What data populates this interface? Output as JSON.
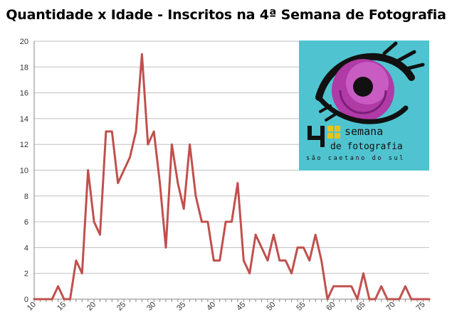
{
  "chart_data": {
    "type": "line",
    "title": "Quantidade x Idade - Inscritos na 4ª Semana de Fotografia",
    "xlabel": "",
    "ylabel": "",
    "xlim": [
      10,
      76
    ],
    "ylim": [
      0,
      20
    ],
    "x_ticks": [
      "10",
      "15",
      "20",
      "25",
      "30",
      "35",
      "40",
      "45",
      "50",
      "55",
      "60",
      "65",
      "70",
      "75"
    ],
    "y_ticks": [
      "0",
      "2",
      "4",
      "6",
      "8",
      "10",
      "12",
      "14",
      "16",
      "18",
      "20"
    ],
    "grid": true,
    "legend": "none",
    "series": [
      {
        "color": "#c0504d",
        "x": [
          10,
          11,
          12,
          13,
          14,
          15,
          16,
          17,
          18,
          19,
          20,
          21,
          22,
          23,
          24,
          25,
          26,
          27,
          28,
          29,
          30,
          31,
          32,
          33,
          34,
          35,
          36,
          37,
          38,
          39,
          40,
          41,
          42,
          43,
          44,
          45,
          46,
          47,
          48,
          49,
          50,
          51,
          52,
          53,
          54,
          55,
          56,
          57,
          58,
          59,
          60,
          61,
          62,
          63,
          64,
          65,
          66,
          67,
          68,
          69,
          70,
          71,
          72,
          73,
          74,
          75,
          76
        ],
        "values": [
          0,
          0,
          0,
          0,
          1,
          0,
          0,
          3,
          2,
          10,
          6,
          5,
          13,
          13,
          9,
          10,
          11,
          13,
          19,
          12,
          13,
          9,
          4,
          12,
          9,
          7,
          12,
          8,
          6,
          6,
          3,
          3,
          6,
          6,
          9,
          3,
          2,
          5,
          4,
          3,
          5,
          3,
          3,
          2,
          4,
          4,
          3,
          5,
          3,
          0,
          1,
          1,
          1,
          1,
          0,
          2,
          0,
          0,
          1,
          0,
          0,
          0,
          1,
          0,
          0,
          0,
          0
        ]
      }
    ]
  },
  "logo": {
    "number": "4",
    "line1": "semana",
    "line2": "de fotografia",
    "location": "são caetano do sul",
    "bg_color": "#4fc4d0",
    "iris_color": "#b03aa6"
  }
}
